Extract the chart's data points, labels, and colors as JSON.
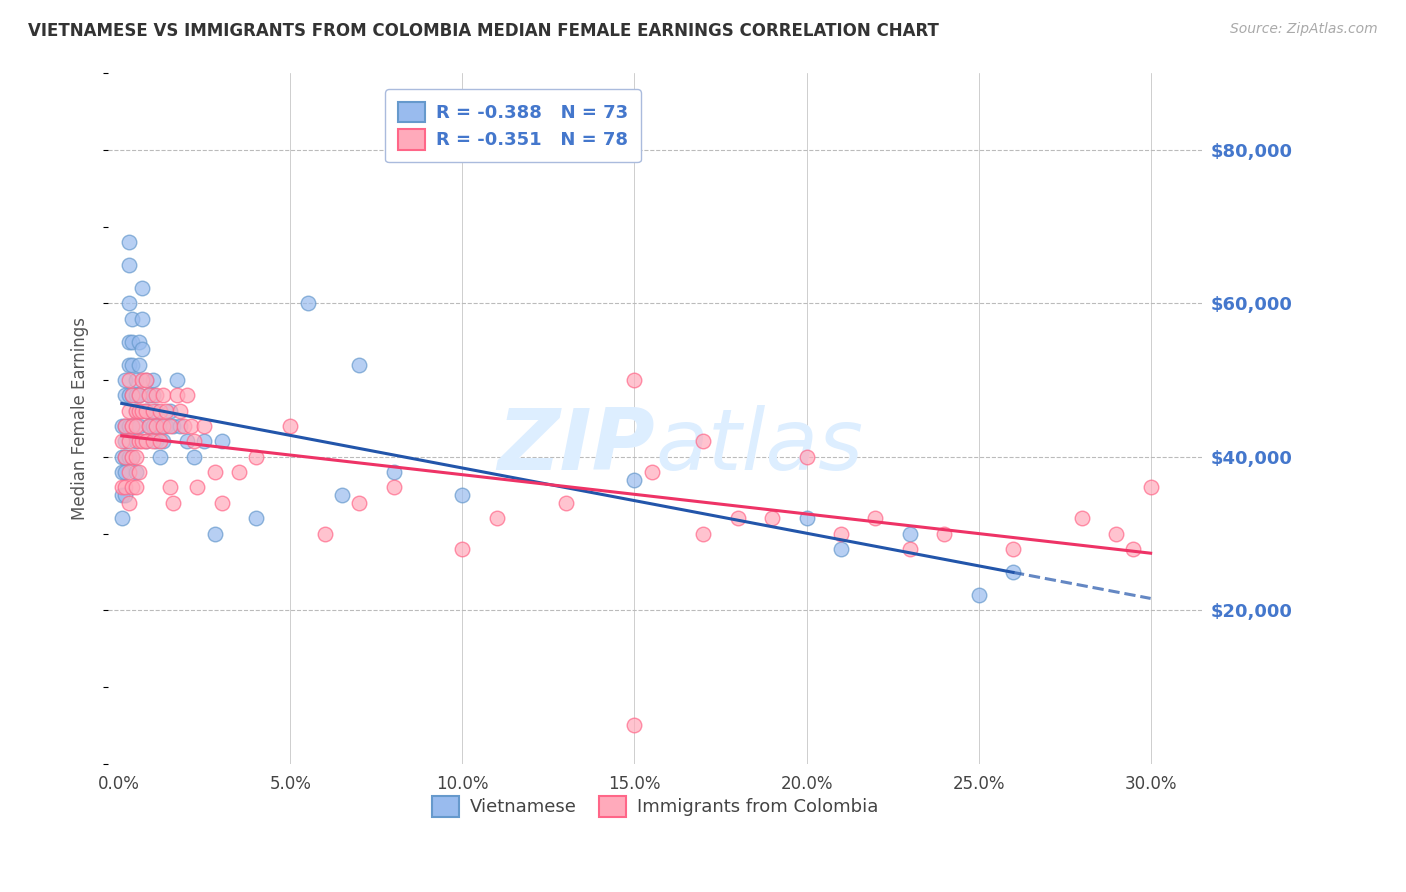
{
  "title": "VIETNAMESE VS IMMIGRANTS FROM COLOMBIA MEDIAN FEMALE EARNINGS CORRELATION CHART",
  "source": "Source: ZipAtlas.com",
  "ylabel": "Median Female Earnings",
  "xlabel_ticks": [
    "0.0%",
    "5.0%",
    "10.0%",
    "15.0%",
    "20.0%",
    "25.0%",
    "30.0%"
  ],
  "xlabel_vals": [
    0.0,
    0.05,
    0.1,
    0.15,
    0.2,
    0.25,
    0.3
  ],
  "ytick_labels": [
    "$80,000",
    "$60,000",
    "$40,000",
    "$20,000"
  ],
  "ytick_vals": [
    80000,
    60000,
    40000,
    20000
  ],
  "ylim": [
    0,
    90000
  ],
  "xlim": [
    -0.003,
    0.315
  ],
  "legend_blue_label": "Vietnamese",
  "legend_pink_label": "Immigrants from Colombia",
  "R_blue": "-0.388",
  "N_blue": "73",
  "R_pink": "-0.351",
  "N_pink": "78",
  "blue_color": "#6699CC",
  "pink_color": "#FF6688",
  "blue_scatter_color": "#99BBEE",
  "pink_scatter_color": "#FFAABB",
  "trend_blue_color": "#2255AA",
  "trend_pink_color": "#EE3366",
  "watermark_color": "#CCDDEEFF",
  "axis_label_color": "#4477CC",
  "grid_color": "#BBBBBB",
  "title_color": "#333333",
  "blue_x": [
    0.001,
    0.001,
    0.001,
    0.001,
    0.001,
    0.002,
    0.002,
    0.002,
    0.002,
    0.002,
    0.002,
    0.002,
    0.003,
    0.003,
    0.003,
    0.003,
    0.003,
    0.003,
    0.003,
    0.003,
    0.004,
    0.004,
    0.004,
    0.004,
    0.004,
    0.004,
    0.005,
    0.005,
    0.005,
    0.005,
    0.005,
    0.006,
    0.006,
    0.006,
    0.006,
    0.007,
    0.007,
    0.007,
    0.008,
    0.008,
    0.008,
    0.009,
    0.009,
    0.01,
    0.01,
    0.01,
    0.011,
    0.011,
    0.012,
    0.012,
    0.013,
    0.014,
    0.015,
    0.016,
    0.017,
    0.018,
    0.02,
    0.022,
    0.025,
    0.028,
    0.03,
    0.04,
    0.055,
    0.065,
    0.07,
    0.08,
    0.1,
    0.15,
    0.2,
    0.21,
    0.23,
    0.25,
    0.26
  ],
  "blue_y": [
    44000,
    40000,
    38000,
    35000,
    32000,
    50000,
    48000,
    44000,
    42000,
    40000,
    38000,
    35000,
    68000,
    65000,
    60000,
    55000,
    52000,
    48000,
    44000,
    40000,
    58000,
    55000,
    52000,
    48000,
    44000,
    40000,
    50000,
    48000,
    46000,
    42000,
    38000,
    55000,
    52000,
    48000,
    44000,
    62000,
    58000,
    54000,
    50000,
    46000,
    42000,
    48000,
    44000,
    50000,
    48000,
    44000,
    46000,
    42000,
    44000,
    40000,
    42000,
    44000,
    46000,
    44000,
    50000,
    44000,
    42000,
    40000,
    42000,
    30000,
    42000,
    32000,
    60000,
    35000,
    52000,
    38000,
    35000,
    37000,
    32000,
    28000,
    30000,
    22000,
    25000
  ],
  "pink_x": [
    0.001,
    0.001,
    0.002,
    0.002,
    0.002,
    0.003,
    0.003,
    0.003,
    0.003,
    0.003,
    0.004,
    0.004,
    0.004,
    0.004,
    0.005,
    0.005,
    0.005,
    0.005,
    0.006,
    0.006,
    0.006,
    0.006,
    0.007,
    0.007,
    0.007,
    0.008,
    0.008,
    0.008,
    0.009,
    0.009,
    0.01,
    0.01,
    0.011,
    0.011,
    0.012,
    0.012,
    0.013,
    0.013,
    0.014,
    0.015,
    0.015,
    0.016,
    0.017,
    0.018,
    0.019,
    0.02,
    0.021,
    0.022,
    0.023,
    0.025,
    0.028,
    0.03,
    0.035,
    0.04,
    0.05,
    0.06,
    0.07,
    0.08,
    0.1,
    0.11,
    0.13,
    0.15,
    0.17,
    0.19,
    0.2,
    0.22,
    0.24,
    0.26,
    0.28,
    0.29,
    0.295,
    0.3,
    0.15,
    0.17,
    0.18,
    0.21,
    0.23,
    0.155
  ],
  "pink_y": [
    42000,
    36000,
    44000,
    40000,
    36000,
    50000,
    46000,
    42000,
    38000,
    34000,
    48000,
    44000,
    40000,
    36000,
    46000,
    44000,
    40000,
    36000,
    48000,
    46000,
    42000,
    38000,
    50000,
    46000,
    42000,
    50000,
    46000,
    42000,
    48000,
    44000,
    46000,
    42000,
    48000,
    44000,
    46000,
    42000,
    48000,
    44000,
    46000,
    44000,
    36000,
    34000,
    48000,
    46000,
    44000,
    48000,
    44000,
    42000,
    36000,
    44000,
    38000,
    34000,
    38000,
    40000,
    44000,
    30000,
    34000,
    36000,
    28000,
    32000,
    34000,
    50000,
    42000,
    32000,
    40000,
    32000,
    30000,
    28000,
    32000,
    30000,
    28000,
    36000,
    5000,
    30000,
    32000,
    30000,
    28000,
    38000
  ]
}
